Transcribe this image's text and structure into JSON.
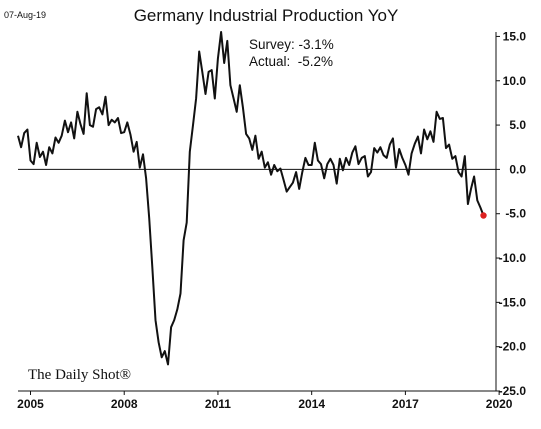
{
  "date_stamp": "07-Aug-19",
  "brand": "The Daily Shot®",
  "chart_data": {
    "type": "line",
    "title": "Germany Industrial Production YoY",
    "annotations": [
      "Survey: -3.1%",
      "Actual:  -5.2%"
    ],
    "xlabel": "",
    "ylabel": "",
    "xlim": [
      2004.6,
      2019.9
    ],
    "ylim": [
      -25,
      15.5
    ],
    "x_ticks": [
      2005,
      2008,
      2011,
      2014,
      2017,
      2020
    ],
    "x_tick_labels": [
      "2005",
      "2008",
      "2011",
      "2014",
      "2017",
      "2020"
    ],
    "y_ticks": [
      15,
      10,
      5,
      0,
      -5,
      -10,
      -15,
      -20,
      -25
    ],
    "y_tick_labels": [
      "15.0",
      "10.0",
      "5.0",
      "0.0",
      "-5.0",
      "-10.0",
      "-15.0",
      "-20.0",
      "-25.0"
    ],
    "y_axis_side": "right",
    "zero_line": true,
    "grid": false,
    "highlight_last_point_color": "#dd2222",
    "line_color": "#111111",
    "series": [
      {
        "x": [
          2004.6,
          2004.7,
          2004.8,
          2004.9,
          2005.0,
          2005.1,
          2005.2,
          2005.3,
          2005.4,
          2005.5,
          2005.6,
          2005.7,
          2005.8,
          2005.9,
          2006.0,
          2006.1,
          2006.2,
          2006.3,
          2006.4,
          2006.5,
          2006.6,
          2006.7,
          2006.8,
          2006.9,
          2007.0,
          2007.1,
          2007.2,
          2007.3,
          2007.4,
          2007.5,
          2007.6,
          2007.7,
          2007.8,
          2007.9,
          2008.0,
          2008.1,
          2008.2,
          2008.3,
          2008.4,
          2008.5,
          2008.6,
          2008.7,
          2008.8,
          2008.9,
          2009.0,
          2009.1,
          2009.2,
          2009.3,
          2009.4,
          2009.5,
          2009.6,
          2009.7,
          2009.8,
          2009.9,
          2010.0,
          2010.1,
          2010.2,
          2010.3,
          2010.4,
          2010.5,
          2010.6,
          2010.7,
          2010.8,
          2010.9,
          2011.0,
          2011.1,
          2011.2,
          2011.3,
          2011.4,
          2011.5,
          2011.6,
          2011.7,
          2011.8,
          2011.9,
          2012.0,
          2012.1,
          2012.2,
          2012.3,
          2012.4,
          2012.5,
          2012.6,
          2012.7,
          2012.8,
          2012.9,
          2013.0,
          2013.1,
          2013.2,
          2013.3,
          2013.4,
          2013.5,
          2013.6,
          2013.7,
          2013.8,
          2013.9,
          2014.0,
          2014.1,
          2014.2,
          2014.3,
          2014.4,
          2014.5,
          2014.6,
          2014.7,
          2014.8,
          2014.9,
          2015.0,
          2015.1,
          2015.2,
          2015.3,
          2015.4,
          2015.5,
          2015.6,
          2015.7,
          2015.8,
          2015.9,
          2016.0,
          2016.1,
          2016.2,
          2016.3,
          2016.4,
          2016.5,
          2016.6,
          2016.7,
          2016.8,
          2016.9,
          2017.0,
          2017.1,
          2017.2,
          2017.3,
          2017.4,
          2017.5,
          2017.6,
          2017.7,
          2017.8,
          2017.9,
          2018.0,
          2018.1,
          2018.2,
          2018.3,
          2018.4,
          2018.5,
          2018.6,
          2018.7,
          2018.8,
          2018.9,
          2019.0,
          2019.1,
          2019.2,
          2019.3,
          2019.4,
          2019.5
        ],
        "values": [
          3.8,
          2.5,
          4.1,
          4.5,
          1.0,
          0.6,
          3.0,
          1.4,
          2.0,
          0.5,
          2.5,
          1.8,
          3.6,
          3.0,
          3.8,
          5.5,
          4.2,
          5.3,
          3.5,
          6.5,
          5.1,
          4.0,
          8.6,
          5.0,
          4.8,
          6.8,
          7.0,
          6.2,
          8.2,
          5.0,
          5.6,
          5.3,
          5.8,
          4.1,
          4.2,
          5.3,
          3.9,
          2.0,
          3.1,
          0.2,
          1.7,
          -1.0,
          -5.5,
          -11.0,
          -17.0,
          -19.5,
          -21.2,
          -20.5,
          -22.0,
          -17.8,
          -17.0,
          -15.8,
          -14.0,
          -8.0,
          -6.0,
          2.0,
          5.0,
          8.0,
          13.3,
          11.0,
          8.5,
          11.0,
          11.2,
          8.0,
          12.5,
          15.5,
          12.0,
          14.5,
          9.5,
          8.0,
          6.5,
          9.5,
          7.0,
          4.0,
          3.5,
          2.2,
          3.8,
          1.2,
          2.0,
          0.2,
          0.8,
          -0.6,
          0.5,
          -0.2,
          0.1,
          -1.2,
          -2.5,
          -2.0,
          -1.5,
          -0.3,
          -2.2,
          -0.3,
          1.3,
          0.5,
          0.5,
          3.0,
          1.0,
          0.6,
          -1.0,
          0.6,
          1.2,
          0.5,
          -1.6,
          1.2,
          -0.1,
          1.3,
          0.5,
          1.9,
          2.6,
          0.6,
          1.3,
          1.5,
          -0.8,
          -0.3,
          2.4,
          1.9,
          2.5,
          1.6,
          1.3,
          2.8,
          3.5,
          0.2,
          2.3,
          1.3,
          0.5,
          -0.6,
          1.8,
          2.9,
          3.7,
          1.8,
          4.5,
          3.4,
          4.3,
          3.1,
          6.5,
          5.7,
          5.8,
          2.4,
          2.8,
          1.2,
          1.5,
          -0.3,
          -0.8,
          1.5,
          -3.9,
          -2.2,
          -0.8,
          -3.5,
          -4.3,
          -5.2
        ]
      }
    ]
  }
}
